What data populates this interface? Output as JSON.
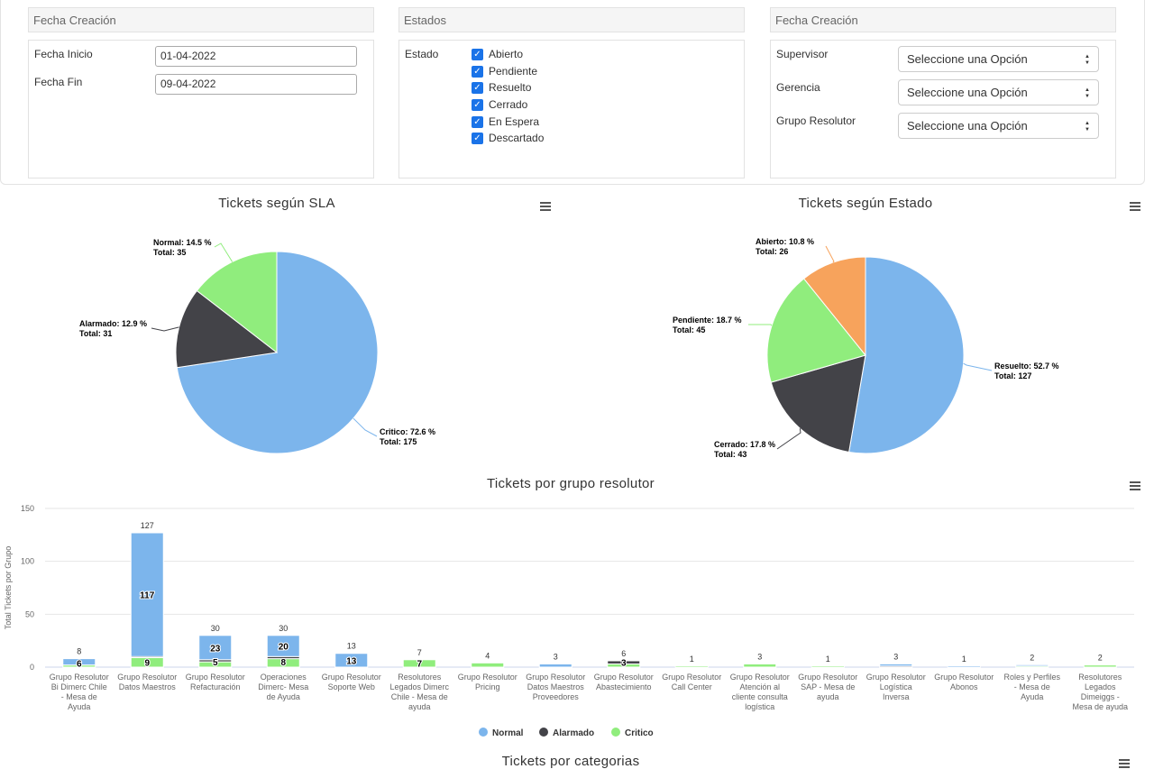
{
  "filters": {
    "fecha": {
      "header": "Fecha Creación",
      "start_label": "Fecha Inicio",
      "start_value": "01-04-2022",
      "end_label": "Fecha Fin",
      "end_value": "09-04-2022"
    },
    "estados": {
      "header": "Estados",
      "label": "Estado",
      "options": [
        "Abierto",
        "Pendiente",
        "Resuelto",
        "Cerrado",
        "En Espera",
        "Descartado"
      ],
      "checked": [
        true,
        true,
        true,
        true,
        true,
        true
      ]
    },
    "grupos": {
      "header": "Fecha Creación",
      "fields": [
        {
          "label": "Supervisor",
          "value": "Seleccione una Opción"
        },
        {
          "label": "Gerencia",
          "value": "Seleccione una Opción"
        },
        {
          "label": "Grupo Resolutor",
          "value": "Seleccione una Opción"
        }
      ]
    }
  },
  "chart_data": [
    {
      "type": "pie",
      "title": "Tickets según SLA",
      "slices": [
        {
          "label": "Critico",
          "pct": "72.6 %",
          "total": "175",
          "value": 175,
          "color": "#7cb5ec"
        },
        {
          "label": "Alarmado",
          "pct": "12.9 %",
          "total": "31",
          "value": 31,
          "color": "#434348"
        },
        {
          "label": "Normal",
          "pct": "14.5 %",
          "total": "35",
          "value": 35,
          "color": "#90ed7d"
        }
      ]
    },
    {
      "type": "pie",
      "title": "Tickets según Estado",
      "slices": [
        {
          "label": "Resuelto",
          "pct": "52.7 %",
          "total": "127",
          "value": 127,
          "color": "#7cb5ec"
        },
        {
          "label": "Cerrado",
          "pct": "17.8 %",
          "total": "43",
          "value": 43,
          "color": "#434348"
        },
        {
          "label": "Pendiente",
          "pct": "18.7 %",
          "total": "45",
          "value": 45,
          "color": "#90ed7d"
        },
        {
          "label": "Abierto",
          "pct": "10.8 %",
          "total": "26",
          "value": 26,
          "color": "#f7a35c"
        }
      ]
    },
    {
      "type": "bar",
      "stacked": true,
      "title": "Tickets por grupo resolutor",
      "ylabel": "Total Tickets por Grupo",
      "ylim": [
        0,
        150
      ],
      "yticks": [
        0,
        50,
        100,
        150
      ],
      "categories": [
        "Grupo Resolutor Bi Dimerc Chile - Mesa de Ayuda",
        "Grupo Resolutor Datos Maestros",
        "Grupo Resolutor Refacturación",
        "Operaciones Dimerc- Mesa de Ayuda",
        "Grupo Resolutor Soporte Web",
        "Resolutores Legados Dimerc Chile - Mesa de ayuda",
        "Grupo Resolutor Pricing",
        "Grupo Resolutor Datos Maestros Proveedores",
        "Grupo Resolutor Abastecimiento",
        "Grupo Resolutor Call Center",
        "Grupo Resolutor Atención al cliente consulta logística",
        "Grupo Resolutor SAP - Mesa de ayuda",
        "Grupo Resolutor Logística Inversa",
        "Grupo Resolutor Abonos",
        "Roles y Perfiles - Mesa de Ayuda",
        "Resolutores Legados Dimeiggs - Mesa de ayuda"
      ],
      "category_lines": [
        [
          "Grupo Resolutor",
          "Bi Dimerc Chile",
          "- Mesa de",
          "Ayuda"
        ],
        [
          "Grupo Resolutor",
          "Datos Maestros"
        ],
        [
          "Grupo Resolutor",
          "Refacturación"
        ],
        [
          "Operaciones",
          "Dimerc- Mesa",
          "de Ayuda"
        ],
        [
          "Grupo Resolutor",
          "Soporte Web"
        ],
        [
          "Resolutores",
          "Legados Dimerc",
          "Chile - Mesa de",
          "ayuda"
        ],
        [
          "Grupo Resolutor",
          "Pricing"
        ],
        [
          "Grupo Resolutor",
          "Datos Maestros",
          "Proveedores"
        ],
        [
          "Grupo Resolutor",
          "Abastecimiento"
        ],
        [
          "Grupo Resolutor",
          "Call Center"
        ],
        [
          "Grupo Resolutor",
          "Atención al",
          "cliente consulta",
          "logística"
        ],
        [
          "Grupo Resolutor",
          "SAP - Mesa de",
          "ayuda"
        ],
        [
          "Grupo Resolutor",
          "Logística",
          "Inversa"
        ],
        [
          "Grupo Resolutor",
          "Abonos"
        ],
        [
          "Roles y Perfiles",
          "- Mesa de",
          "Ayuda"
        ],
        [
          "Resolutores",
          "Legados",
          "Dimeiggs -",
          "Mesa de ayuda"
        ]
      ],
      "totals": [
        8,
        127,
        30,
        30,
        13,
        7,
        4,
        3,
        6,
        1,
        3,
        1,
        3,
        1,
        2,
        2
      ],
      "series": [
        {
          "name": "Normal",
          "color": "#7cb5ec",
          "values": [
            6,
            117,
            23,
            20,
            13,
            0,
            0,
            3,
            0,
            0,
            0,
            0,
            2,
            1,
            1,
            0
          ]
        },
        {
          "name": "Alarmado",
          "color": "#434348",
          "values": [
            0,
            1,
            2,
            2,
            0,
            0,
            0,
            0,
            3,
            0,
            0,
            0,
            1,
            0,
            0,
            0
          ]
        },
        {
          "name": "Critico",
          "color": "#90ed7d",
          "values": [
            2,
            9,
            5,
            8,
            0,
            7,
            4,
            0,
            3,
            1,
            3,
            1,
            0,
            0,
            1,
            2
          ]
        }
      ],
      "inside_labels": [
        {
          "cat": 0,
          "text": "6",
          "y": 4
        },
        {
          "cat": 1,
          "text": "117",
          "y": 68.5
        },
        {
          "cat": 1,
          "text": "9",
          "y": 4.5
        },
        {
          "cat": 2,
          "text": "23",
          "y": 18.5
        },
        {
          "cat": 2,
          "text": "5",
          "y": 5
        },
        {
          "cat": 3,
          "text": "20",
          "y": 20
        },
        {
          "cat": 3,
          "text": "8",
          "y": 5
        },
        {
          "cat": 4,
          "text": "13",
          "y": 6.5
        },
        {
          "cat": 5,
          "text": "7",
          "y": 4
        },
        {
          "cat": 8,
          "text": "3",
          "y": 4.5
        }
      ],
      "legend": [
        "Normal",
        "Alarmado",
        "Critico"
      ]
    },
    {
      "type": "bar",
      "title": "Tickets por categorias"
    }
  ]
}
